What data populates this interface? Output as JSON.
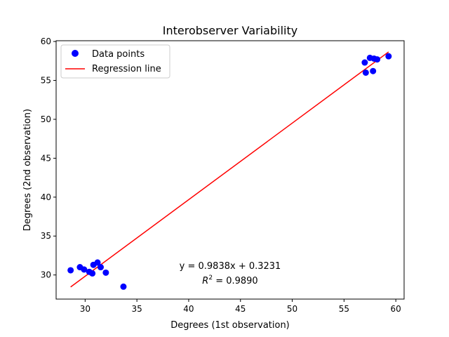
{
  "chart_data": {
    "type": "scatter",
    "title": "Interobserver Variability",
    "xlabel": "Degrees (1st observation)",
    "ylabel": "Degrees (2nd observation)",
    "xlim": [
      27.2,
      60.8
    ],
    "ylim": [
      26.9,
      60.1
    ],
    "xticks": [
      30,
      35,
      40,
      45,
      50,
      55,
      60
    ],
    "yticks": [
      30,
      35,
      40,
      45,
      50,
      55,
      60
    ],
    "grid": false,
    "legend_position": "top-left",
    "series": [
      {
        "name": "Data points",
        "kind": "scatter",
        "color": "#0000ff",
        "points": [
          {
            "x": 28.6,
            "y": 30.6
          },
          {
            "x": 29.5,
            "y": 31.0
          },
          {
            "x": 29.9,
            "y": 30.7
          },
          {
            "x": 30.4,
            "y": 30.4
          },
          {
            "x": 30.7,
            "y": 30.2
          },
          {
            "x": 30.8,
            "y": 31.3
          },
          {
            "x": 31.2,
            "y": 31.6
          },
          {
            "x": 31.5,
            "y": 31.0
          },
          {
            "x": 32.0,
            "y": 30.3
          },
          {
            "x": 33.7,
            "y": 28.5
          },
          {
            "x": 57.0,
            "y": 57.3
          },
          {
            "x": 57.1,
            "y": 56.0
          },
          {
            "x": 57.5,
            "y": 57.9
          },
          {
            "x": 57.8,
            "y": 56.2
          },
          {
            "x": 57.9,
            "y": 57.8
          },
          {
            "x": 58.2,
            "y": 57.7
          },
          {
            "x": 59.3,
            "y": 58.1
          }
        ]
      },
      {
        "name": "Regression line",
        "kind": "line",
        "color": "#ff0000",
        "slope": 0.9838,
        "intercept": 0.3231,
        "x_range": [
          28.6,
          59.3
        ]
      }
    ],
    "annotations": {
      "equation": "y = 0.9838x + 0.3231",
      "r2_label": "R",
      "r2_sup": "2",
      "r2_value": " = 0.9890"
    }
  }
}
